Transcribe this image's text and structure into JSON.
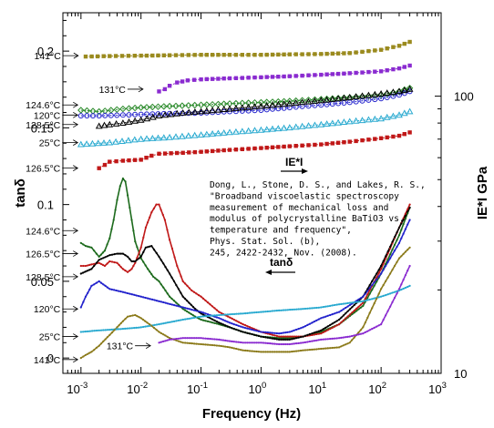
{
  "chart_data": {
    "type": "line",
    "title": "",
    "xlabel": "Frequency (Hz)",
    "ylabel": "tanδ",
    "y2label": "IE*I GPa",
    "xscale": "log",
    "y2scale": "log",
    "xlim": [
      0.0005,
      1000
    ],
    "ylim": [
      -0.01,
      0.225
    ],
    "y2lim": [
      10,
      200
    ],
    "x_ticks": [
      {
        "exp": "-3",
        "value": 0.001
      },
      {
        "exp": "-2",
        "value": 0.01
      },
      {
        "exp": "-1",
        "value": 0.1
      },
      {
        "exp": "0",
        "value": 1
      },
      {
        "exp": "1",
        "value": 10
      },
      {
        "exp": "2",
        "value": 100
      },
      {
        "exp": "3",
        "value": 1000
      }
    ],
    "x_base": "10",
    "y_ticks": [
      {
        "label": "0",
        "value": 0
      },
      {
        "label": "0.05",
        "value": 0.05
      },
      {
        "label": "0.1",
        "value": 0.1
      },
      {
        "label": "0.15",
        "value": 0.15
      },
      {
        "label": "0.2",
        "value": 0.2
      }
    ],
    "y2_ticks": [
      {
        "label": "10",
        "value": 10
      },
      {
        "label": "100",
        "value": 100
      }
    ],
    "modulus_series": [
      {
        "temp": "141°C",
        "color": "#9a8a1e",
        "marker": "square",
        "x": [
          0.0012,
          0.003,
          0.01,
          0.03,
          0.1,
          0.3,
          1,
          3,
          10,
          30,
          100,
          200,
          300
        ],
        "y": [
          139,
          139.5,
          140,
          140.5,
          141,
          141,
          141,
          141.5,
          142,
          143,
          147,
          152,
          157
        ]
      },
      {
        "temp": "131°C",
        "color": "#8a2bd0",
        "marker": "square",
        "x": [
          0.02,
          0.025,
          0.03,
          0.04,
          0.06,
          0.1,
          0.3,
          1,
          3,
          10,
          30,
          100,
          200,
          300
        ],
        "y": [
          104,
          106,
          109,
          112,
          114,
          115,
          116,
          117,
          118,
          119.5,
          121,
          123,
          126,
          129
        ]
      },
      {
        "temp": "124.6°C",
        "color": "#2a8a2a",
        "marker": "diamond",
        "x": [
          0.001,
          0.002,
          0.005,
          0.01,
          0.03,
          0.1,
          0.3,
          1,
          3,
          10,
          30,
          100,
          200,
          300
        ],
        "y": [
          89,
          88,
          90,
          91,
          92,
          93,
          94,
          95,
          96,
          97.5,
          99,
          101,
          104,
          107
        ]
      },
      {
        "temp": "120°C",
        "color": "#2222cc",
        "marker": "circle",
        "x": [
          0.001,
          0.002,
          0.005,
          0.01,
          0.03,
          0.1,
          0.3,
          1,
          3,
          10,
          30,
          100,
          200,
          300
        ],
        "y": [
          85,
          85,
          85.5,
          86,
          86.5,
          87,
          88,
          89,
          91,
          93,
          95,
          98,
          101,
          104
        ]
      },
      {
        "temp": "128.5°C",
        "color": "#000000",
        "marker": "triangle",
        "x": [
          0.002,
          0.003,
          0.005,
          0.01,
          0.02,
          0.05,
          0.1,
          0.3,
          1,
          3,
          10,
          30,
          100,
          200,
          300
        ],
        "y": [
          78,
          79,
          80,
          82,
          85,
          87,
          88,
          90,
          92,
          94,
          96.5,
          99,
          102,
          104,
          106
        ]
      },
      {
        "temp": "25°C",
        "color": "#2aaad0",
        "marker": "triangle",
        "x": [
          0.001,
          0.003,
          0.01,
          0.03,
          0.1,
          0.3,
          1,
          3,
          10,
          30,
          100,
          200,
          300
        ],
        "y": [
          67,
          68,
          70,
          71,
          72.5,
          74,
          75.5,
          77,
          79,
          81,
          83,
          85.5,
          88
        ]
      },
      {
        "temp": "126.5°C",
        "color": "#c01818",
        "marker": "square",
        "x": [
          0.002,
          0.0025,
          0.003,
          0.005,
          0.01,
          0.015,
          0.02,
          0.05,
          0.1,
          0.3,
          1,
          3,
          10,
          30,
          100,
          200,
          300
        ],
        "y": [
          55,
          56.5,
          58,
          58.5,
          59,
          61,
          62,
          62.5,
          63,
          64,
          65,
          66,
          67,
          68.5,
          70.5,
          72,
          74
        ]
      }
    ],
    "tand_series": [
      {
        "temp": "124.6°C",
        "color": "#1c6a1c",
        "x": [
          0.001,
          0.0012,
          0.0015,
          0.002,
          0.0025,
          0.003,
          0.0035,
          0.004,
          0.0045,
          0.005,
          0.0055,
          0.006,
          0.007,
          0.008,
          0.01,
          0.013,
          0.016,
          0.02,
          0.03,
          0.05,
          0.08,
          0.1,
          0.2,
          0.3,
          0.5,
          1,
          2,
          3,
          5,
          10,
          20,
          50,
          100,
          200,
          300
        ],
        "y": [
          0.075,
          0.073,
          0.072,
          0.066,
          0.07,
          0.078,
          0.09,
          0.103,
          0.112,
          0.117,
          0.115,
          0.106,
          0.09,
          0.076,
          0.065,
          0.058,
          0.053,
          0.05,
          0.04,
          0.032,
          0.027,
          0.025,
          0.022,
          0.02,
          0.017,
          0.014,
          0.013,
          0.013,
          0.014,
          0.017,
          0.022,
          0.034,
          0.055,
          0.08,
          0.098
        ]
      },
      {
        "temp": "126.5°C",
        "color": "#c01818",
        "x": [
          0.001,
          0.0012,
          0.0015,
          0.002,
          0.0025,
          0.003,
          0.004,
          0.005,
          0.006,
          0.007,
          0.008,
          0.01,
          0.012,
          0.015,
          0.018,
          0.02,
          0.025,
          0.03,
          0.04,
          0.05,
          0.07,
          0.1,
          0.2,
          0.5,
          1,
          2,
          5,
          10,
          20,
          50,
          100,
          200,
          300
        ],
        "y": [
          0.06,
          0.06,
          0.061,
          0.062,
          0.06,
          0.063,
          0.062,
          0.058,
          0.056,
          0.058,
          0.062,
          0.072,
          0.085,
          0.095,
          0.1,
          0.1,
          0.09,
          0.077,
          0.06,
          0.05,
          0.044,
          0.04,
          0.03,
          0.022,
          0.017,
          0.014,
          0.014,
          0.016,
          0.022,
          0.036,
          0.058,
          0.085,
          0.1
        ]
      },
      {
        "temp": "128.5°C",
        "color": "#000000",
        "x": [
          0.001,
          0.0015,
          0.002,
          0.003,
          0.004,
          0.005,
          0.006,
          0.007,
          0.008,
          0.01,
          0.012,
          0.015,
          0.02,
          0.03,
          0.05,
          0.08,
          0.1,
          0.2,
          0.3,
          0.5,
          1,
          2,
          3,
          5,
          10,
          20,
          50,
          100,
          200,
          300
        ],
        "y": [
          0.055,
          0.058,
          0.064,
          0.067,
          0.068,
          0.068,
          0.066,
          0.063,
          0.063,
          0.066,
          0.072,
          0.073,
          0.066,
          0.055,
          0.04,
          0.032,
          0.029,
          0.023,
          0.02,
          0.017,
          0.014,
          0.012,
          0.012,
          0.014,
          0.018,
          0.025,
          0.04,
          0.06,
          0.085,
          0.098
        ]
      },
      {
        "temp": "120°C",
        "color": "#2222cc",
        "x": [
          0.001,
          0.0012,
          0.0015,
          0.002,
          0.003,
          0.005,
          0.01,
          0.02,
          0.05,
          0.1,
          0.2,
          0.3,
          0.5,
          1,
          2,
          3,
          5,
          10,
          20,
          50,
          100,
          200,
          300
        ],
        "y": [
          0.033,
          0.04,
          0.047,
          0.05,
          0.045,
          0.043,
          0.04,
          0.037,
          0.033,
          0.03,
          0.026,
          0.023,
          0.02,
          0.017,
          0.016,
          0.017,
          0.02,
          0.026,
          0.03,
          0.04,
          0.055,
          0.075,
          0.09
        ]
      },
      {
        "temp": "25°C",
        "color": "#2aaad0",
        "x": [
          0.001,
          0.002,
          0.005,
          0.01,
          0.02,
          0.05,
          0.1,
          0.2,
          0.5,
          1,
          2,
          5,
          10,
          20,
          50,
          100,
          200,
          300
        ],
        "y": [
          0.017,
          0.018,
          0.019,
          0.02,
          0.022,
          0.025,
          0.027,
          0.028,
          0.029,
          0.03,
          0.031,
          0.032,
          0.033,
          0.035,
          0.037,
          0.04,
          0.044,
          0.047
        ]
      },
      {
        "temp": "141°C",
        "color": "#8b7a1a",
        "x": [
          0.001,
          0.0012,
          0.0015,
          0.002,
          0.003,
          0.004,
          0.005,
          0.006,
          0.008,
          0.01,
          0.015,
          0.02,
          0.03,
          0.05,
          0.1,
          0.2,
          0.3,
          0.5,
          1,
          2,
          3,
          5,
          10,
          20,
          30,
          50,
          100,
          200,
          300
        ],
        "y": [
          0.0,
          0.002,
          0.004,
          0.008,
          0.015,
          0.02,
          0.024,
          0.027,
          0.028,
          0.026,
          0.021,
          0.017,
          0.013,
          0.01,
          0.009,
          0.008,
          0.007,
          0.005,
          0.004,
          0.004,
          0.004,
          0.005,
          0.006,
          0.007,
          0.01,
          0.02,
          0.045,
          0.065,
          0.072
        ]
      },
      {
        "temp": "131°C",
        "color": "#8a2bd0",
        "x": [
          0.02,
          0.03,
          0.05,
          0.1,
          0.2,
          0.3,
          0.5,
          1,
          2,
          3,
          5,
          10,
          20,
          30,
          50,
          100,
          200,
          300
        ],
        "y": [
          0.01,
          0.012,
          0.013,
          0.013,
          0.012,
          0.011,
          0.01,
          0.01,
          0.009,
          0.009,
          0.01,
          0.012,
          0.013,
          0.014,
          0.016,
          0.022,
          0.045,
          0.06
        ]
      }
    ],
    "modulus_labels": [
      {
        "text": "141°C",
        "lx": 0.001,
        "ly": 140
      },
      {
        "text": "131°C",
        "lx": 0.012,
        "ly": 106
      },
      {
        "text": "124.6°C",
        "lx": 0.00098,
        "ly": 93
      },
      {
        "text": "120°C",
        "lx": 0.00098,
        "ly": 85.5
      },
      {
        "text": "128.5°C",
        "lx": 0.00098,
        "ly": 79
      },
      {
        "text": "25°C",
        "lx": 0.00098,
        "ly": 68
      },
      {
        "text": "126.5°C",
        "lx": 0.00098,
        "ly": 55
      }
    ],
    "tand_labels": [
      {
        "text": "124.6°C",
        "lx": 0.00098,
        "ly": 0.083
      },
      {
        "text": "126.5°C",
        "lx": 0.00098,
        "ly": 0.068
      },
      {
        "text": "128.5°C",
        "lx": 0.00098,
        "ly": 0.053
      },
      {
        "text": "120°C",
        "lx": 0.00098,
        "ly": 0.032
      },
      {
        "text": "25°C",
        "lx": 0.00098,
        "ly": 0.014
      },
      {
        "text": "131°C",
        "lx": 0.016,
        "ly": 0.008
      },
      {
        "text": "141°C",
        "lx": 0.00098,
        "ly": -0.001
      }
    ],
    "annotations": {
      "modulus_arrow_label": "IE*I",
      "tand_arrow_label": "tanδ",
      "citation": [
        "Dong, L., Stone, D. S., and Lakes, R. S.,",
        "\"Broadband viscoelastic spectroscopy",
        "measurement of mechanical loss and",
        "modulus of polycrystalline BaTiO3 vs.",
        "temperature and frequency\",",
        "Phys. Stat. Sol. (b),",
        "245, 2422-2432, Nov. (2008)."
      ]
    }
  }
}
